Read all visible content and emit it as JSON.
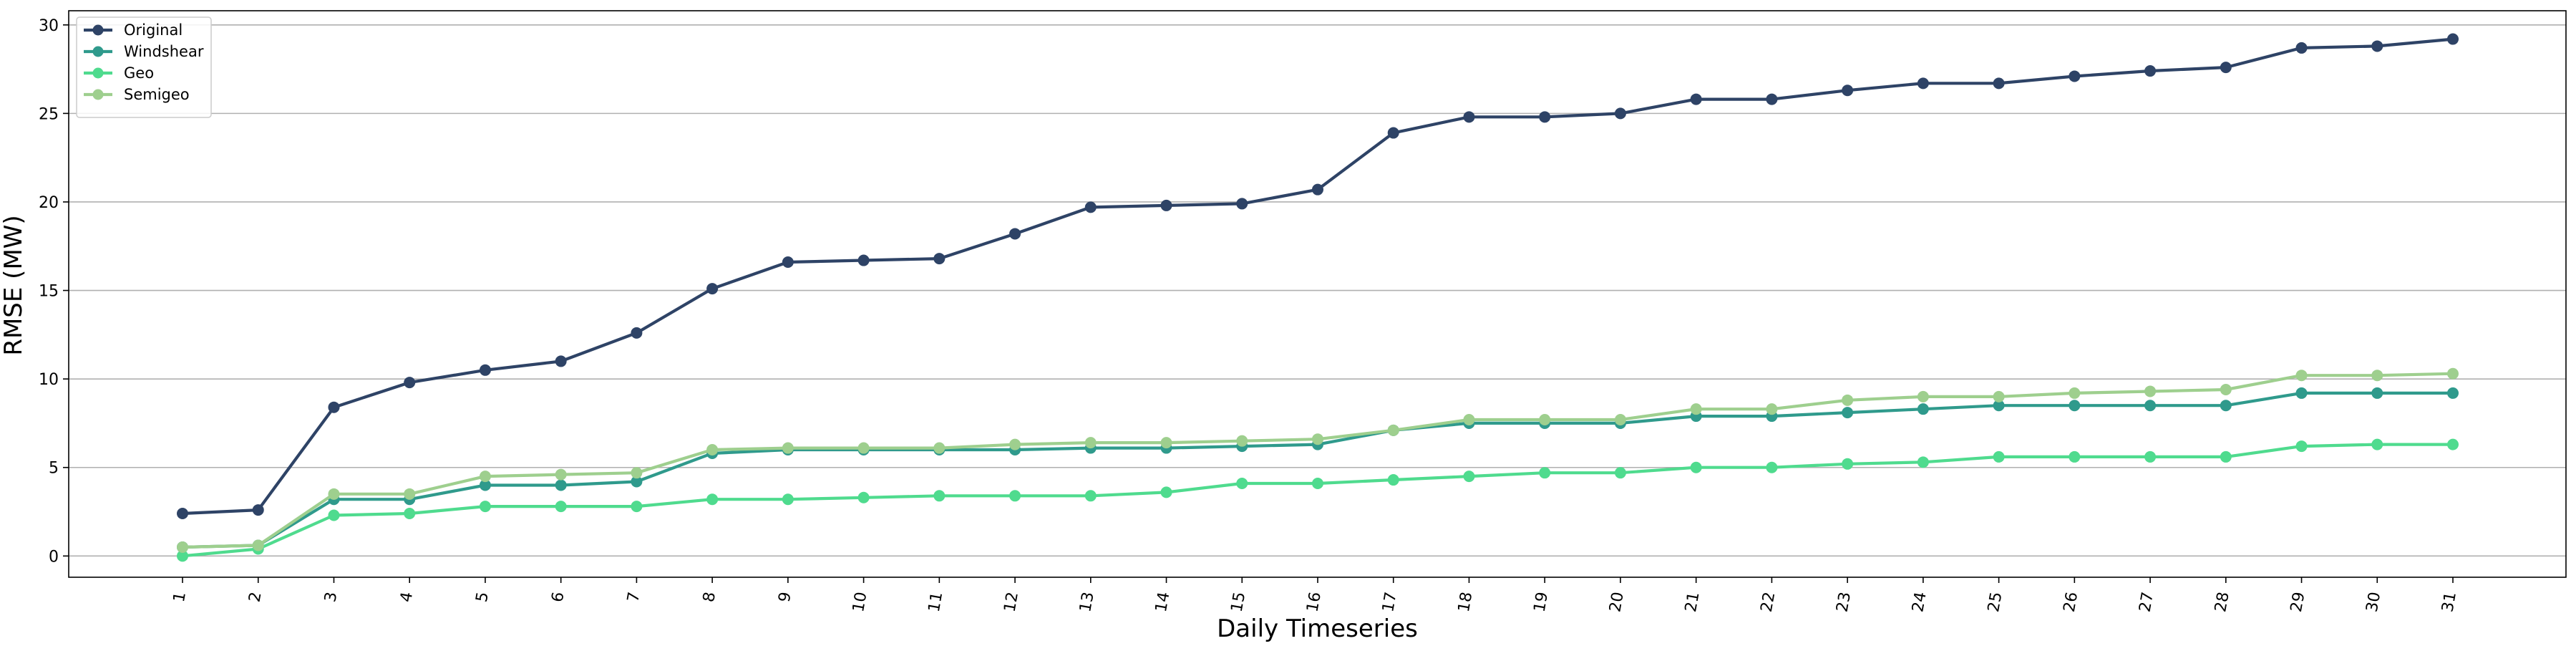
{
  "chart_data": {
    "type": "line",
    "title": "",
    "xlabel": "Daily Timeseries",
    "ylabel": "RMSE (MW)",
    "categories": [
      "1",
      "2",
      "3",
      "4",
      "5",
      "6",
      "7",
      "8",
      "9",
      "10",
      "11",
      "12",
      "13",
      "14",
      "15",
      "16",
      "17",
      "18",
      "19",
      "20",
      "21",
      "22",
      "23",
      "24",
      "25",
      "26",
      "27",
      "28",
      "29",
      "30",
      "31"
    ],
    "ylim": [
      -1.2,
      30.8
    ],
    "yticks": [
      0,
      5,
      10,
      15,
      20,
      25,
      30
    ],
    "grid": "horizontal",
    "legend_position": "top-left",
    "series": [
      {
        "name": "Original",
        "color": "#2e4366",
        "values": [
          2.4,
          2.6,
          8.4,
          9.8,
          10.5,
          11.0,
          12.6,
          15.1,
          16.6,
          16.7,
          16.8,
          18.2,
          19.7,
          19.8,
          19.9,
          20.7,
          23.9,
          24.8,
          24.8,
          25.0,
          25.8,
          25.8,
          26.3,
          26.7,
          26.7,
          27.1,
          27.4,
          27.6,
          28.7,
          28.8,
          29.2
        ]
      },
      {
        "name": "Windshear",
        "color": "#2f9a8c",
        "values": [
          0.5,
          0.6,
          3.2,
          3.2,
          4.0,
          4.0,
          4.2,
          5.8,
          6.0,
          6.0,
          6.0,
          6.0,
          6.1,
          6.1,
          6.2,
          6.3,
          7.1,
          7.5,
          7.5,
          7.5,
          7.9,
          7.9,
          8.1,
          8.3,
          8.5,
          8.5,
          8.5,
          8.5,
          9.2,
          9.2,
          9.2
        ]
      },
      {
        "name": "Geo",
        "color": "#4fdb8e",
        "values": [
          0.0,
          0.4,
          2.3,
          2.4,
          2.8,
          2.8,
          2.8,
          3.2,
          3.2,
          3.3,
          3.4,
          3.4,
          3.4,
          3.6,
          4.1,
          4.1,
          4.3,
          4.5,
          4.7,
          4.7,
          5.0,
          5.0,
          5.2,
          5.3,
          5.6,
          5.6,
          5.6,
          5.6,
          6.2,
          6.3,
          6.3
        ]
      },
      {
        "name": "Semigeo",
        "color": "#9ecf8e",
        "values": [
          0.5,
          0.6,
          3.5,
          3.5,
          4.5,
          4.6,
          4.7,
          6.0,
          6.1,
          6.1,
          6.1,
          6.3,
          6.4,
          6.4,
          6.5,
          6.6,
          7.1,
          7.7,
          7.7,
          7.7,
          8.3,
          8.3,
          8.8,
          9.0,
          9.0,
          9.2,
          9.3,
          9.4,
          10.2,
          10.2,
          10.3
        ]
      }
    ]
  }
}
